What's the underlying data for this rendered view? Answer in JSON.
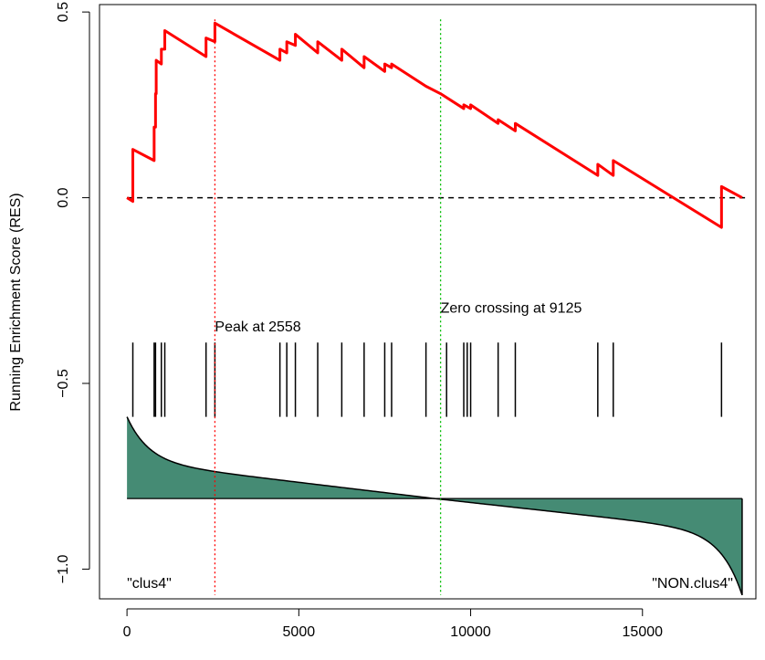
{
  "chart_data": {
    "type": "line",
    "title": "",
    "xlabel": "",
    "ylabel": "Running Enrichment Score (RES)",
    "xlim": [
      -800,
      18300
    ],
    "ylim": [
      -1.08,
      0.52
    ],
    "x_ticks": [
      0,
      5000,
      10000,
      15000
    ],
    "x_tick_labels": [
      "0",
      "5000",
      "10000",
      "15000"
    ],
    "y_ticks": [
      0.5,
      0.0,
      -0.5,
      -1.0
    ],
    "y_tick_labels": [
      "0.5",
      "0.0",
      "−0.5",
      "−1.0"
    ],
    "grid": false,
    "series": [
      {
        "color": "#ff0000",
        "points": [
          [
            0,
            0.0
          ],
          [
            170,
            -0.01
          ],
          [
            170,
            0.13
          ],
          [
            790,
            0.1
          ],
          [
            790,
            0.19
          ],
          [
            830,
            0.19
          ],
          [
            830,
            0.28
          ],
          [
            850,
            0.28
          ],
          [
            850,
            0.37
          ],
          [
            1000,
            0.36
          ],
          [
            1000,
            0.4
          ],
          [
            1100,
            0.4
          ],
          [
            1100,
            0.45
          ],
          [
            2300,
            0.38
          ],
          [
            2300,
            0.43
          ],
          [
            2558,
            0.42
          ],
          [
            2558,
            0.47
          ],
          [
            4450,
            0.37
          ],
          [
            4450,
            0.4
          ],
          [
            4650,
            0.39
          ],
          [
            4650,
            0.42
          ],
          [
            4900,
            0.41
          ],
          [
            4900,
            0.44
          ],
          [
            5550,
            0.39
          ],
          [
            5550,
            0.42
          ],
          [
            6250,
            0.37
          ],
          [
            6250,
            0.4
          ],
          [
            6900,
            0.35
          ],
          [
            6900,
            0.38
          ],
          [
            7500,
            0.34
          ],
          [
            7500,
            0.36
          ],
          [
            7700,
            0.35
          ],
          [
            7700,
            0.36
          ],
          [
            8700,
            0.3
          ],
          [
            9125,
            0.28
          ],
          [
            9800,
            0.24
          ],
          [
            9800,
            0.25
          ],
          [
            10000,
            0.24
          ],
          [
            10000,
            0.25
          ],
          [
            10800,
            0.2
          ],
          [
            10800,
            0.21
          ],
          [
            11300,
            0.18
          ],
          [
            11300,
            0.2
          ],
          [
            13700,
            0.06
          ],
          [
            13700,
            0.09
          ],
          [
            14150,
            0.06
          ],
          [
            14150,
            0.1
          ],
          [
            17300,
            -0.08
          ],
          [
            17300,
            0.03
          ],
          [
            17900,
            0.0
          ]
        ]
      }
    ],
    "baseline": {
      "y": 0.0,
      "style": "dashed",
      "color": "#000000"
    },
    "gene_hits": [
      170,
      790,
      830,
      1000,
      1100,
      2300,
      2558,
      4450,
      4650,
      4900,
      5550,
      6250,
      6900,
      7500,
      7700,
      8700,
      9300,
      9800,
      9900,
      10000,
      10800,
      11300,
      13700,
      14150,
      17300
    ],
    "ranked_metric": {
      "fill_color": "#458b74",
      "x_end": 17900,
      "zero_line_y": -0.81,
      "top_y": -0.59,
      "bottom_y": -1.07
    },
    "peak": {
      "x": 2558,
      "label": "Peak at 2558",
      "color": "#ff0000"
    },
    "zero_crossing": {
      "x": 9125,
      "label": "Zero crossing at 9125",
      "color": "#00bb00"
    },
    "left_label": "\"clus4\"",
    "right_label": "\"NON.clus4\""
  }
}
